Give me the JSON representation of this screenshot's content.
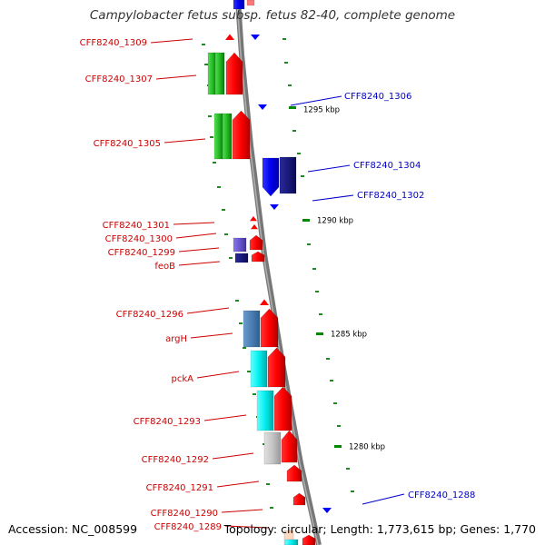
{
  "title": "Campylobacter fetus subsp. fetus 82-40, complete genome",
  "footer": {
    "accession": "Accession: NC_008599",
    "summary": "Topology: circular; Length: 1,773,615 bp; Genes: 1,770"
  },
  "colors": {
    "backbone": "#8a8a8a",
    "forward_label": "#cc0000",
    "reverse_label": "#0000cc",
    "tick": "#228822",
    "ruler_tick": "#008800",
    "tick_label": "#000000"
  },
  "ruler_labels": [
    "1295 kbp",
    "1290 kbp",
    "1285 kbp",
    "1280 kbp"
  ],
  "gene_labels": [
    {
      "text": "CFF8240_1309",
      "strand": "forward"
    },
    {
      "text": "CFF8240_1307",
      "strand": "forward"
    },
    {
      "text": "CFF8240_1306",
      "strand": "reverse"
    },
    {
      "text": "CFF8240_1305",
      "strand": "forward"
    },
    {
      "text": "CFF8240_1304",
      "strand": "reverse"
    },
    {
      "text": "CFF8240_1302",
      "strand": "reverse"
    },
    {
      "text": "CFF8240_1301",
      "strand": "forward"
    },
    {
      "text": "CFF8240_1300",
      "strand": "forward"
    },
    {
      "text": "CFF8240_1299",
      "strand": "forward"
    },
    {
      "text": "feoB",
      "strand": "forward"
    },
    {
      "text": "CFF8240_1296",
      "strand": "forward"
    },
    {
      "text": "argH",
      "strand": "forward"
    },
    {
      "text": "pckA",
      "strand": "forward"
    },
    {
      "text": "CFF8240_1293",
      "strand": "forward"
    },
    {
      "text": "CFF8240_1292",
      "strand": "forward"
    },
    {
      "text": "CFF8240_1291",
      "strand": "forward"
    },
    {
      "text": "CFF8240_1288",
      "strand": "reverse"
    },
    {
      "text": "CFF8240_1290",
      "strand": "forward"
    },
    {
      "text": "CFF8240_1289",
      "strand": "forward"
    }
  ]
}
